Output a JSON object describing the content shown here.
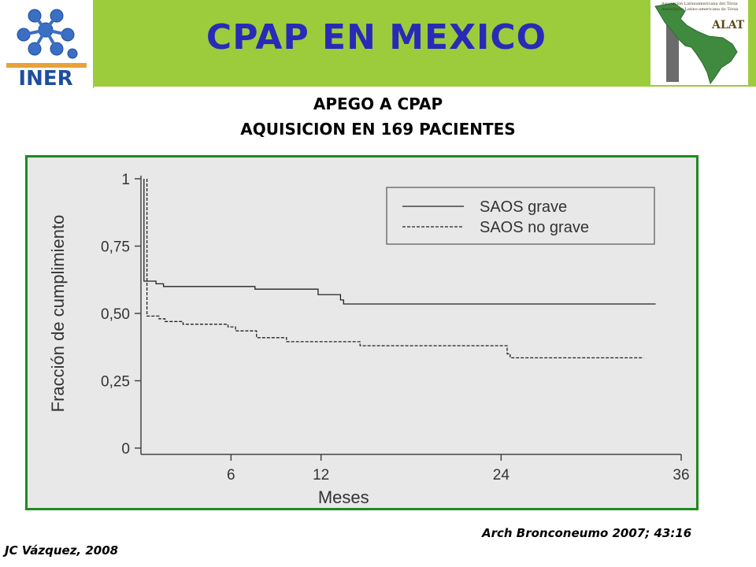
{
  "header": {
    "title": "CPAP EN MEXICO",
    "left_logo_text": "INER",
    "right_logo_text": "ALAT",
    "right_logo_lines": [
      "Asociación Latinoamericana del Tórax",
      "Associação Latino-americana do Tórax"
    ],
    "banner_color": "#9ccc3c",
    "title_color": "#2a2ab8"
  },
  "subtitle": {
    "line1": "APEGO A CPAP",
    "line2": "AQUISICION EN 169 PACIENTES"
  },
  "chart_data": {
    "type": "line",
    "xlabel": "Meses",
    "ylabel": "Fracción de cumplimiento",
    "xlim": [
      0,
      36
    ],
    "ylim": [
      0,
      1
    ],
    "xticks": [
      {
        "value": 6,
        "label": "6"
      },
      {
        "value": 12,
        "label": "12"
      },
      {
        "value": 24,
        "label": "24"
      },
      {
        "value": 36,
        "label": "36"
      }
    ],
    "yticks": [
      {
        "value": 0,
        "label": "0"
      },
      {
        "value": 0.25,
        "label": "0,25"
      },
      {
        "value": 0.5,
        "label": "0,50"
      },
      {
        "value": 0.75,
        "label": "0,75"
      },
      {
        "value": 1,
        "label": "1"
      }
    ],
    "legend_position": "top-right",
    "series": [
      {
        "name": "SAOS grave",
        "style": "solid",
        "points": [
          [
            0.2,
            1
          ],
          [
            0.2,
            0.62
          ],
          [
            1,
            0.62
          ],
          [
            1,
            0.61
          ],
          [
            1.5,
            0.61
          ],
          [
            1.5,
            0.6
          ],
          [
            7.6,
            0.6
          ],
          [
            7.6,
            0.59
          ],
          [
            11.8,
            0.59
          ],
          [
            11.8,
            0.57
          ],
          [
            13.3,
            0.57
          ],
          [
            13.3,
            0.55
          ],
          [
            13.5,
            0.55
          ],
          [
            13.5,
            0.535
          ],
          [
            34.3,
            0.535
          ]
        ]
      },
      {
        "name": "SAOS no grave",
        "style": "dashed",
        "points": [
          [
            0.4,
            1
          ],
          [
            0.4,
            0.49
          ],
          [
            1.2,
            0.49
          ],
          [
            1.2,
            0.48
          ],
          [
            1.6,
            0.48
          ],
          [
            1.6,
            0.47
          ],
          [
            2.8,
            0.47
          ],
          [
            2.8,
            0.46
          ],
          [
            5.8,
            0.46
          ],
          [
            5.8,
            0.45
          ],
          [
            6.3,
            0.45
          ],
          [
            6.3,
            0.435
          ],
          [
            7.7,
            0.435
          ],
          [
            7.7,
            0.41
          ],
          [
            9.7,
            0.41
          ],
          [
            9.7,
            0.395
          ],
          [
            14.6,
            0.395
          ],
          [
            14.6,
            0.38
          ],
          [
            24.4,
            0.38
          ],
          [
            24.4,
            0.35
          ],
          [
            24.6,
            0.35
          ],
          [
            24.6,
            0.335
          ],
          [
            33.5,
            0.335
          ]
        ]
      }
    ]
  },
  "footer": {
    "author": "JC Vázquez, 2008",
    "citation": "Arch Bronconeumo 2007; 43:16"
  }
}
